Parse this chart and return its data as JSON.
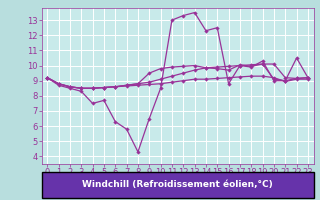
{
  "bg_color": "#b8dede",
  "plot_bg_color": "#c8eaea",
  "line_color": "#993399",
  "grid_color": "#ffffff",
  "xlabel": "Windchill (Refroidissement éolien,°C)",
  "xlabel_color": "#ffffff",
  "xlabel_bg_color": "#6633aa",
  "xlabel_fontsize": 6.5,
  "tick_fontsize": 6.0,
  "tick_color": "#993399",
  "xlim": [
    -0.5,
    23.5
  ],
  "ylim": [
    3.5,
    13.8
  ],
  "yticks": [
    4,
    5,
    6,
    7,
    8,
    9,
    10,
    11,
    12,
    13
  ],
  "xticks": [
    0,
    1,
    2,
    3,
    4,
    5,
    6,
    7,
    8,
    9,
    10,
    11,
    12,
    13,
    14,
    15,
    16,
    17,
    18,
    19,
    20,
    21,
    22,
    23
  ],
  "series1_x": [
    0,
    1,
    2,
    3,
    4,
    5,
    6,
    7,
    8,
    9,
    10,
    11,
    12,
    13,
    14,
    15,
    16,
    17,
    18,
    19,
    20,
    21,
    22,
    23
  ],
  "series1_y": [
    9.2,
    8.8,
    8.6,
    8.5,
    8.5,
    8.55,
    8.6,
    8.7,
    8.8,
    8.9,
    9.1,
    9.3,
    9.5,
    9.7,
    9.85,
    9.9,
    9.95,
    10.0,
    10.05,
    10.1,
    10.1,
    9.2,
    9.15,
    9.2
  ],
  "series2_x": [
    0,
    1,
    2,
    3,
    4,
    5,
    6,
    7,
    8,
    9,
    10,
    11,
    12,
    13,
    14,
    15,
    16,
    17,
    18,
    19,
    20,
    21,
    22,
    23
  ],
  "series2_y": [
    9.2,
    8.7,
    8.5,
    8.3,
    7.5,
    7.7,
    6.3,
    5.8,
    4.3,
    6.5,
    8.5,
    13.0,
    13.3,
    13.5,
    12.3,
    12.5,
    8.8,
    10.0,
    9.9,
    10.3,
    9.0,
    9.0,
    10.5,
    9.2
  ],
  "series3_x": [
    0,
    1,
    2,
    3,
    4,
    5,
    6,
    7,
    8,
    9,
    10,
    11,
    12,
    13,
    14,
    15,
    16,
    17,
    18,
    19,
    20,
    21,
    22,
    23
  ],
  "series3_y": [
    9.2,
    8.8,
    8.6,
    8.5,
    8.5,
    8.55,
    8.6,
    8.7,
    8.8,
    9.5,
    9.8,
    9.9,
    9.95,
    10.0,
    9.85,
    9.8,
    9.7,
    10.05,
    9.95,
    10.1,
    9.1,
    9.0,
    9.15,
    9.2
  ],
  "series4_x": [
    0,
    1,
    2,
    3,
    4,
    5,
    6,
    7,
    8,
    9,
    10,
    11,
    12,
    13,
    14,
    15,
    16,
    17,
    18,
    19,
    20,
    21,
    22,
    23
  ],
  "series4_y": [
    9.2,
    8.8,
    8.6,
    8.5,
    8.5,
    8.55,
    8.6,
    8.65,
    8.7,
    8.75,
    8.8,
    8.9,
    9.0,
    9.1,
    9.1,
    9.15,
    9.2,
    9.25,
    9.3,
    9.3,
    9.2,
    8.95,
    9.1,
    9.1
  ]
}
